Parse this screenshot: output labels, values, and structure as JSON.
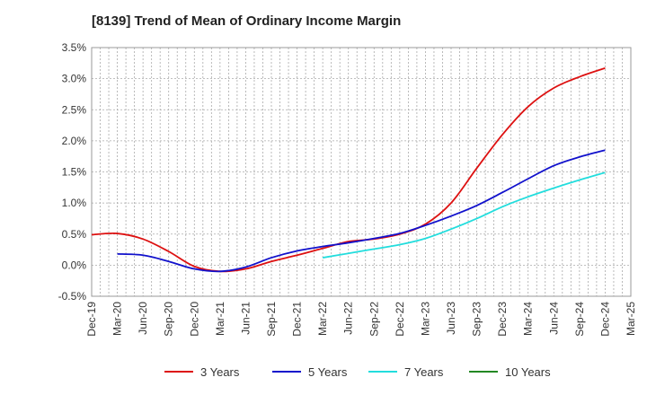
{
  "chart_data": {
    "type": "line",
    "title": "[8139]  Trend of Mean of Ordinary Income Margin",
    "xlabel": "",
    "ylabel": "",
    "x_ticks": [
      "Dec-19",
      "Mar-20",
      "Jun-20",
      "Sep-20",
      "Dec-20",
      "Mar-21",
      "Jun-21",
      "Sep-21",
      "Dec-21",
      "Mar-22",
      "Jun-22",
      "Sep-22",
      "Dec-22",
      "Mar-23",
      "Jun-23",
      "Sep-23",
      "Dec-23",
      "Mar-24",
      "Jun-24",
      "Sep-24",
      "Dec-24",
      "Mar-25"
    ],
    "y_ticks": [
      "-0.5%",
      "0.0%",
      "0.5%",
      "1.0%",
      "1.5%",
      "2.0%",
      "2.5%",
      "3.0%",
      "3.5%"
    ],
    "ylim": [
      -0.5,
      3.5
    ],
    "grid": true,
    "legend_position": "bottom",
    "series": [
      {
        "name": "3 Years",
        "color": "#dd1111",
        "x": [
          "Dec-19",
          "Mar-20",
          "Jun-20",
          "Sep-20",
          "Dec-20",
          "Mar-21",
          "Jun-21",
          "Sep-21",
          "Dec-21",
          "Mar-22",
          "Jun-22",
          "Sep-22",
          "Dec-22",
          "Mar-23",
          "Jun-23",
          "Sep-23",
          "Dec-23",
          "Mar-24",
          "Jun-24",
          "Sep-24",
          "Dec-24"
        ],
        "values": [
          0.49,
          0.51,
          0.42,
          0.22,
          -0.02,
          -0.1,
          -0.06,
          0.06,
          0.16,
          0.27,
          0.38,
          0.42,
          0.5,
          0.66,
          1.0,
          1.56,
          2.1,
          2.55,
          2.85,
          3.03,
          3.17
        ]
      },
      {
        "name": "5 Years",
        "color": "#1111cc",
        "x": [
          "Mar-20",
          "Jun-20",
          "Sep-20",
          "Dec-20",
          "Mar-21",
          "Jun-21",
          "Sep-21",
          "Dec-21",
          "Mar-22",
          "Jun-22",
          "Sep-22",
          "Dec-22",
          "Mar-23",
          "Jun-23",
          "Sep-23",
          "Dec-23",
          "Mar-24",
          "Jun-24",
          "Sep-24",
          "Dec-24"
        ],
        "values": [
          0.18,
          0.16,
          0.06,
          -0.06,
          -0.1,
          -0.03,
          0.12,
          0.23,
          0.3,
          0.36,
          0.43,
          0.51,
          0.64,
          0.79,
          0.96,
          1.17,
          1.39,
          1.6,
          1.74,
          1.85
        ]
      },
      {
        "name": "7 Years",
        "color": "#22dddd",
        "x": [
          "Mar-22",
          "Jun-22",
          "Sep-22",
          "Dec-22",
          "Mar-23",
          "Jun-23",
          "Sep-23",
          "Dec-23",
          "Mar-24",
          "Jun-24",
          "Sep-24",
          "Dec-24"
        ],
        "values": [
          0.12,
          0.19,
          0.26,
          0.33,
          0.43,
          0.58,
          0.75,
          0.94,
          1.1,
          1.24,
          1.37,
          1.49
        ]
      },
      {
        "name": "10 Years",
        "color": "#228822",
        "x": [],
        "values": []
      }
    ]
  }
}
